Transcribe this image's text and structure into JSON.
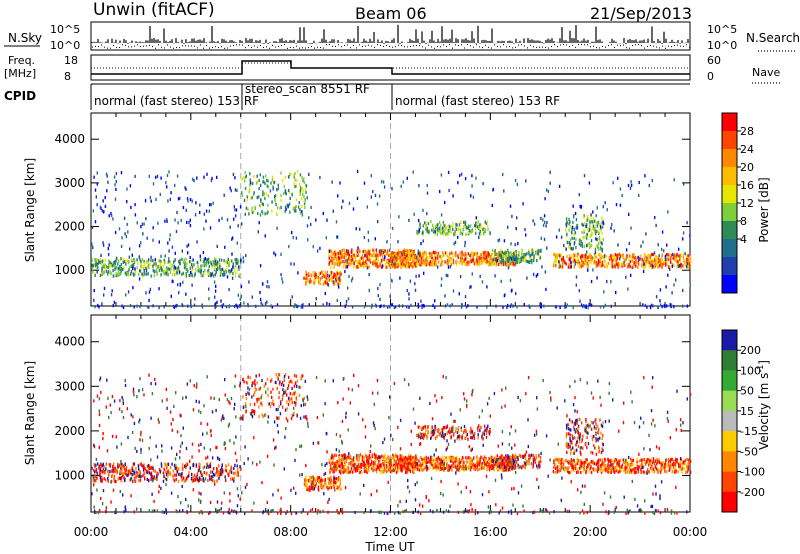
{
  "header": {
    "station": "Unwin (fitACF)",
    "beam": "Beam 06",
    "date": "21/Sep/2013"
  },
  "strip": {
    "nsky_label": "N.Sky",
    "nsearch_label": "N.Search",
    "nsky_ticks": [
      "10^5",
      "10^0"
    ],
    "freq_label_1": "Freq.",
    "freq_label_2": "[MHz]",
    "freq_ticks": [
      "18",
      "8"
    ],
    "nave_label": "Nave",
    "nave_ticks": [
      "60",
      "0"
    ],
    "cpid_label": "CPID",
    "cpid_segments": [
      {
        "label": "normal (fast stereo) 153 RF",
        "start_hour": 0,
        "end_hour": 6
      },
      {
        "label": "stereo_scan 8551 RF",
        "start_hour": 6,
        "end_hour": 12
      },
      {
        "label": "normal (fast stereo) 153 RF",
        "start_hour": 12,
        "end_hour": 24
      }
    ]
  },
  "chart_data": [
    {
      "type": "heatmap",
      "ylabel": "Slant Range [km]",
      "yticks": [
        1000,
        2000,
        3000,
        4000
      ],
      "ylim": [
        180,
        4600
      ],
      "xlim": [
        0,
        24
      ],
      "colorbar": {
        "label": "Power [dB]",
        "ticks": [
          "28",
          "24",
          "20",
          "16",
          "12",
          "8",
          "4"
        ],
        "colors": [
          "#ff0000",
          "#ff4400",
          "#ff8800",
          "#ffbb00",
          "#e6e600",
          "#7fcf3a",
          "#2e8b57",
          "#1f6e8c",
          "#1f3fae",
          "#0000ff"
        ]
      }
    },
    {
      "type": "heatmap",
      "ylabel": "Slant Range [km]",
      "yticks": [
        1000,
        2000,
        3000,
        4000
      ],
      "ylim": [
        180,
        4600
      ],
      "xlim": [
        0,
        24
      ],
      "xlabel": "Time UT",
      "xticks": [
        "00:00",
        "04:00",
        "08:00",
        "12:00",
        "16:00",
        "20:00",
        "00:00"
      ],
      "colorbar": {
        "label": "Velocity [m s",
        "label_sup": "-1",
        "label_end": "]",
        "ticks": [
          "200",
          "100",
          "50",
          "15",
          "-15",
          "-50",
          "-100",
          "-200"
        ],
        "colors": [
          "#1a1aa6",
          "#2e7d32",
          "#33aa33",
          "#99dd55",
          "#bbbbbb",
          "#ffcc00",
          "#ff8800",
          "#ff4400",
          "#ff0000"
        ]
      }
    }
  ]
}
